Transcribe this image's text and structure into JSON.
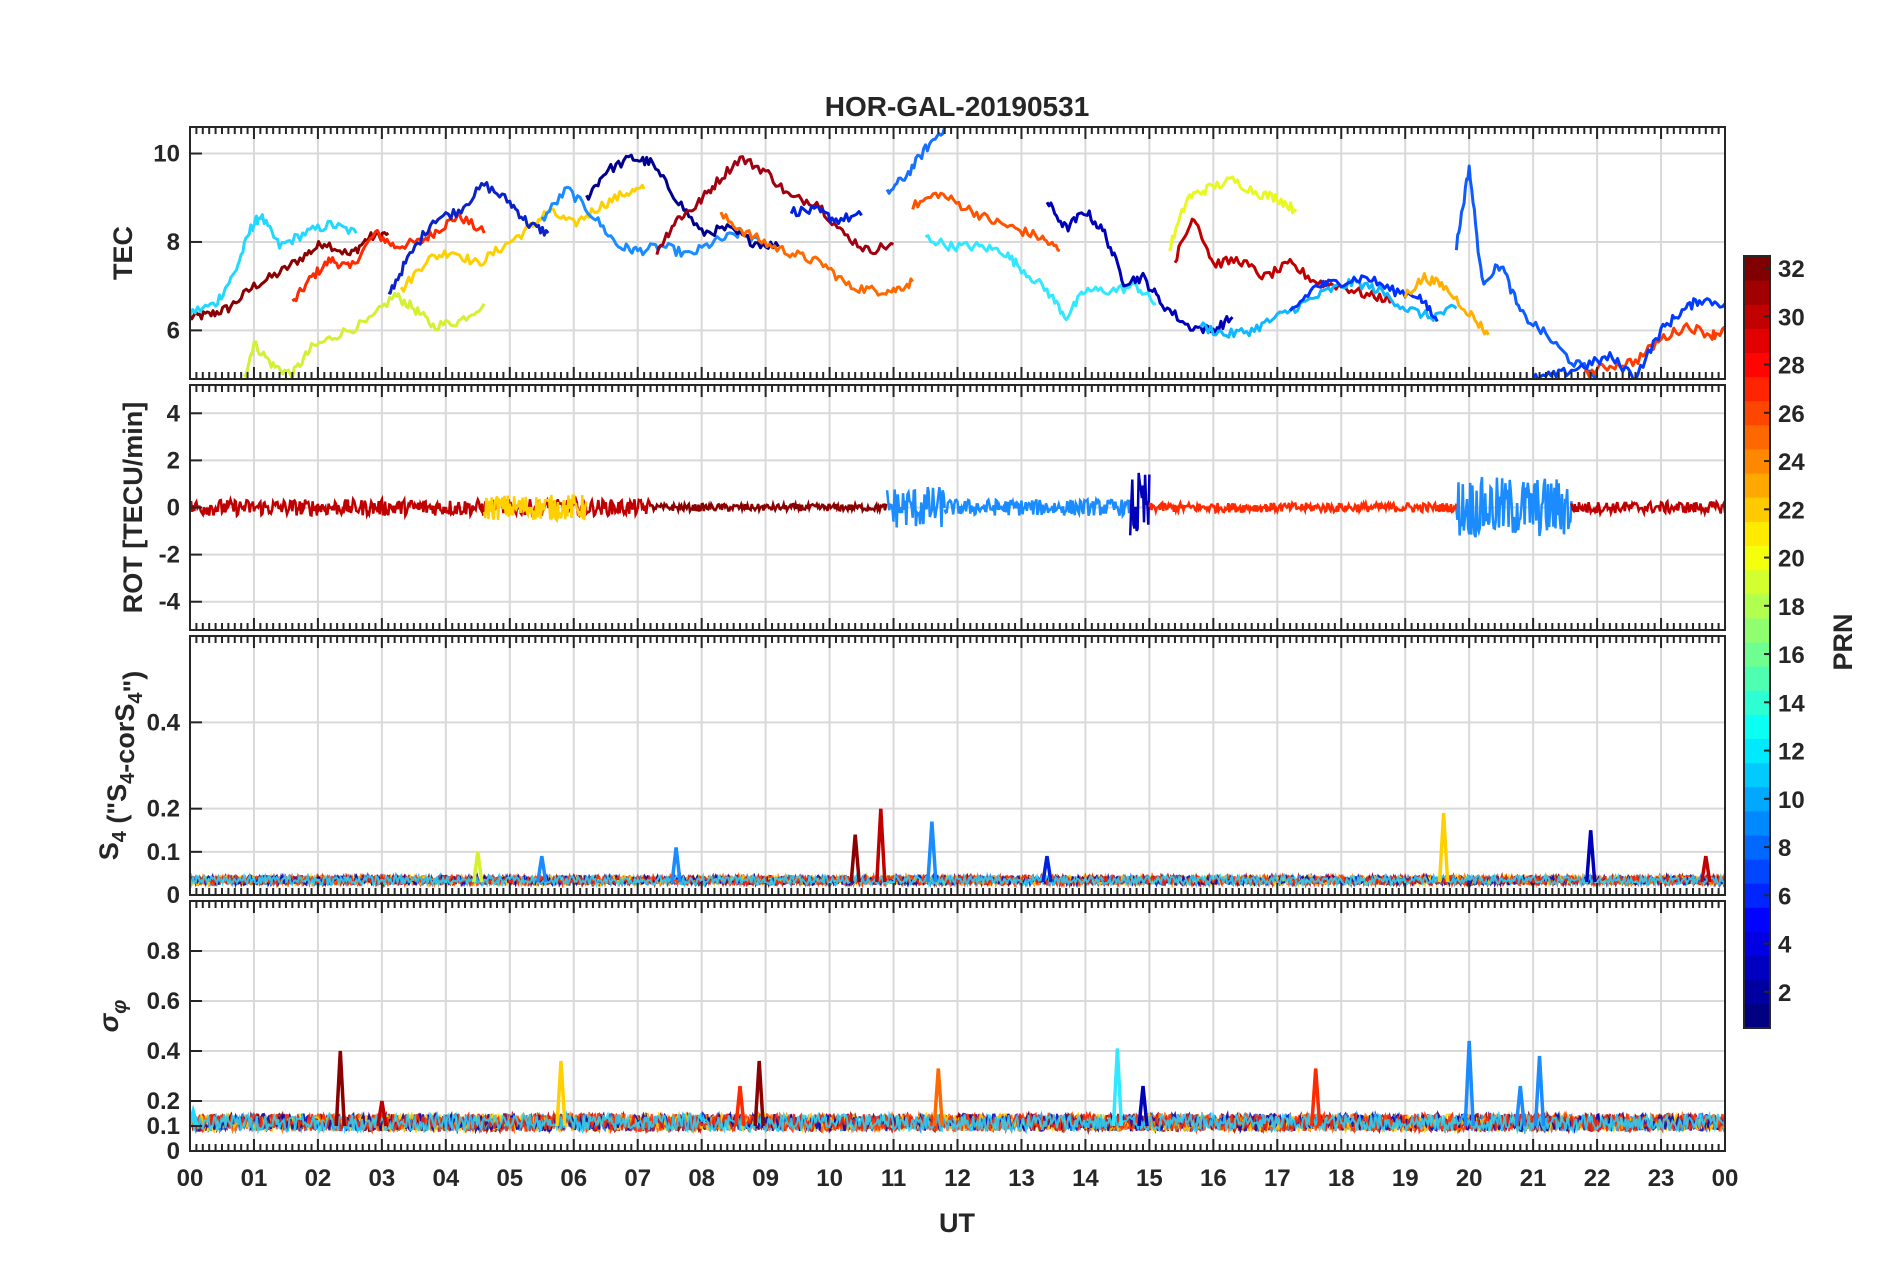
{
  "chart_data": {
    "type": "line",
    "title": "HOR-GAL-20190531",
    "xlabel": "UT",
    "x_ticks": [
      "00",
      "01",
      "02",
      "03",
      "04",
      "05",
      "06",
      "07",
      "08",
      "09",
      "10",
      "11",
      "12",
      "13",
      "14",
      "15",
      "16",
      "17",
      "18",
      "19",
      "20",
      "21",
      "22",
      "23",
      "00"
    ],
    "xlim": [
      0,
      24
    ],
    "colorbar": {
      "label": "PRN",
      "ticks": [
        "2",
        "4",
        "6",
        "8",
        "10",
        "12",
        "14",
        "16",
        "18",
        "20",
        "22",
        "24",
        "26",
        "28",
        "30",
        "32"
      ],
      "range": [
        1,
        32
      ],
      "colormap": "jet"
    },
    "panels": [
      {
        "id": "tec",
        "ylabel": "TEC",
        "ylim": [
          4.9,
          10.6
        ],
        "yticks": [
          "6",
          "8",
          "10"
        ],
        "ytick_values": [
          6,
          8,
          10
        ],
        "series": [
          {
            "prn": 32,
            "color": "#8b0000",
            "x": [
              0,
              0.3,
              0.6,
              1.0,
              1.4,
              1.8,
              2.1,
              2.5,
              2.8,
              3.1
            ],
            "y": [
              6.3,
              6.35,
              6.5,
              7.0,
              7.3,
              7.7,
              8.0,
              7.7,
              8.1,
              8.2
            ]
          },
          {
            "prn": 27,
            "color": "#ff2a00",
            "x": [
              1.6,
              1.9,
              2.2,
              2.5,
              2.9,
              3.2,
              3.6,
              3.9,
              4.2,
              4.6
            ],
            "y": [
              6.6,
              7.2,
              7.6,
              7.4,
              8.2,
              7.9,
              8.0,
              8.3,
              8.6,
              8.2
            ]
          },
          {
            "prn": 12,
            "color": "#22d8ff",
            "x": [
              0,
              0.4,
              0.7,
              0.95,
              1.1,
              1.4,
              1.8,
              2.2,
              2.6
            ],
            "y": [
              6.4,
              6.6,
              7.3,
              8.3,
              8.6,
              7.9,
              8.2,
              8.4,
              8.2
            ]
          },
          {
            "prn": 18,
            "color": "#d4f030",
            "x": [
              0.85,
              1.0,
              1.3,
              1.6,
              1.9,
              2.3,
              2.8,
              3.2,
              3.5,
              3.8,
              4.2,
              4.6
            ],
            "y": [
              4.95,
              5.7,
              5.2,
              5.0,
              5.6,
              5.9,
              6.2,
              6.8,
              6.5,
              6.1,
              6.2,
              6.6
            ]
          },
          {
            "prn": 21,
            "color": "#ffd000",
            "x": [
              3.3,
              3.7,
              4.1,
              4.5,
              4.9,
              5.3,
              5.6,
              6.0,
              6.4,
              6.8,
              7.1
            ],
            "y": [
              6.9,
              7.6,
              7.8,
              7.5,
              7.9,
              8.3,
              8.7,
              8.4,
              8.8,
              9.1,
              9.2
            ]
          },
          {
            "prn": 4,
            "color": "#0a22c8",
            "x": [
              3.1,
              3.4,
              3.8,
              4.2,
              4.6,
              5.0,
              5.3,
              5.6
            ],
            "y": [
              6.8,
              7.6,
              8.5,
              8.7,
              9.3,
              8.9,
              8.4,
              8.2
            ]
          },
          {
            "prn": 10,
            "color": "#1a8cff",
            "x": [
              5.5,
              5.9,
              6.3,
              6.7,
              7.0,
              7.4,
              7.8,
              8.2,
              8.6,
              9.0
            ],
            "y": [
              8.5,
              9.2,
              8.6,
              7.9,
              7.8,
              7.9,
              7.7,
              8.0,
              8.2,
              7.9
            ]
          },
          {
            "prn": 1,
            "color": "#00008f",
            "x": [
              6.2,
              6.5,
              6.9,
              7.2,
              7.6,
              8.0,
              8.4,
              8.8,
              9.2
            ],
            "y": [
              9.0,
              9.6,
              9.9,
              9.8,
              9.0,
              8.2,
              8.3,
              8.0,
              7.9
            ]
          },
          {
            "prn": 31,
            "color": "#a00010",
            "x": [
              7.3,
              7.6,
              7.9,
              8.2,
              8.6,
              9.0,
              9.4,
              9.8,
              10.2,
              10.6,
              11.0
            ],
            "y": [
              7.8,
              8.5,
              8.8,
              9.3,
              9.9,
              9.6,
              9.0,
              8.9,
              8.2,
              7.8,
              7.95
            ]
          },
          {
            "prn": 24,
            "color": "#ff6a00",
            "x": [
              8.3,
              8.7,
              9.1,
              9.5,
              9.9,
              10.3,
              10.7,
              11.0,
              11.3
            ],
            "y": [
              8.6,
              8.2,
              7.9,
              7.7,
              7.5,
              7.0,
              6.9,
              6.9,
              7.1
            ]
          },
          {
            "prn": 3,
            "color": "#0022e0",
            "x": [
              9.4,
              9.8,
              10.1,
              10.5
            ],
            "y": [
              8.7,
              8.7,
              8.5,
              8.6
            ]
          },
          {
            "prn": 9,
            "color": "#1870ff",
            "x": [
              10.9,
              11.2,
              11.5,
              11.8
            ],
            "y": [
              9.1,
              9.5,
              10.1,
              10.6
            ]
          },
          {
            "prn": 25,
            "color": "#ff5200",
            "x": [
              11.3,
              11.7,
              12.1,
              12.5,
              12.9,
              13.3,
              13.6
            ],
            "y": [
              8.8,
              9.1,
              8.8,
              8.5,
              8.3,
              8.1,
              7.8
            ]
          },
          {
            "prn": 13,
            "color": "#30e8ff",
            "x": [
              11.5,
              11.9,
              12.3,
              12.7,
              13.0,
              13.4,
              13.7,
              14.0,
              14.4,
              14.8,
              15.1
            ],
            "y": [
              8.1,
              7.9,
              7.9,
              7.8,
              7.4,
              6.9,
              6.3,
              6.9,
              6.9,
              7.0,
              6.6
            ]
          },
          {
            "prn": 2,
            "color": "#0000b8",
            "x": [
              13.4,
              13.7,
              14.0,
              14.3,
              14.6,
              14.9,
              15.2,
              15.6,
              16.0,
              16.3
            ],
            "y": [
              8.9,
              8.3,
              8.7,
              8.2,
              7.1,
              7.2,
              6.6,
              6.1,
              6.0,
              6.3
            ]
          },
          {
            "prn": 19,
            "color": "#e8f820",
            "x": [
              15.3,
              15.6,
              15.9,
              16.3,
              16.7,
              17.0,
              17.3
            ],
            "y": [
              7.8,
              9.0,
              9.2,
              9.4,
              9.1,
              9.0,
              8.7
            ]
          },
          {
            "prn": 30,
            "color": "#c00000",
            "x": [
              15.4,
              15.7,
              16.0,
              16.4,
              16.8,
              17.2,
              17.6,
              18.0,
              18.4,
              18.8
            ],
            "y": [
              7.6,
              8.6,
              7.5,
              7.6,
              7.2,
              7.5,
              7.1,
              7.0,
              6.8,
              6.7
            ]
          },
          {
            "prn": 11,
            "color": "#10b8ff",
            "x": [
              15.8,
              16.2,
              16.6,
              17.0,
              17.4,
              17.8,
              18.2,
              18.6,
              19.0,
              19.4,
              19.8
            ],
            "y": [
              6.1,
              5.9,
              6.0,
              6.3,
              6.6,
              6.9,
              7.1,
              6.9,
              6.5,
              6.3,
              6.5
            ]
          },
          {
            "prn": 5,
            "color": "#0030ff",
            "x": [
              17.2,
              17.6,
              18.0,
              18.4,
              18.8,
              19.2,
              19.5
            ],
            "y": [
              6.4,
              7.0,
              7.1,
              7.2,
              6.9,
              6.8,
              6.2
            ]
          },
          {
            "prn": 22,
            "color": "#ffb000",
            "x": [
              19.0,
              19.3,
              19.6,
              20.0,
              20.3
            ],
            "y": [
              6.8,
              7.2,
              7.0,
              6.4,
              5.9
            ]
          },
          {
            "prn": 8,
            "color": "#0e5cff",
            "x": [
              19.8,
              20.0,
              20.2,
              20.5,
              20.8,
              21.2,
              21.6,
              22.0
            ],
            "y": [
              7.9,
              9.7,
              7.1,
              7.5,
              6.4,
              5.9,
              5.3,
              5.0
            ]
          },
          {
            "prn": 26,
            "color": "#ff3c00",
            "x": [
              21.8,
              22.2,
              22.6,
              23.0,
              23.4,
              23.8,
              24.0
            ],
            "y": [
              5.0,
              5.2,
              5.3,
              5.8,
              6.1,
              5.9,
              6.0
            ]
          },
          {
            "prn": 6,
            "color": "#003cff",
            "x": [
              21.0,
              21.4,
              21.8,
              22.2,
              22.6,
              23.0,
              23.3,
              23.6,
              24.0
            ],
            "y": [
              4.9,
              5.0,
              5.2,
              5.4,
              4.95,
              6.0,
              6.4,
              6.7,
              6.6
            ]
          }
        ]
      },
      {
        "id": "rot",
        "ylabel": "ROT [TECU/min]",
        "ylim": [
          -5.2,
          5.2
        ],
        "yticks": [
          "-4",
          "-2",
          "0",
          "2",
          "4"
        ],
        "ytick_values": [
          -4,
          -2,
          0,
          2,
          4
        ],
        "activity": [
          {
            "t0": 0,
            "t1": 7.2,
            "amp": 0.35,
            "color": "#c00000"
          },
          {
            "t0": 4.6,
            "t1": 6.2,
            "amp": 0.55,
            "color": "#ffd000"
          },
          {
            "t0": 7.2,
            "t1": 10.9,
            "amp": 0.15,
            "color": "#8b0000"
          },
          {
            "t0": 10.9,
            "t1": 11.8,
            "amp": 0.9,
            "color": "#1a8cff"
          },
          {
            "t0": 11.8,
            "t1": 14.7,
            "amp": 0.35,
            "color": "#1a8cff"
          },
          {
            "t0": 14.7,
            "t1": 15.0,
            "amp": 1.5,
            "color": "#0000b8"
          },
          {
            "t0": 15.0,
            "t1": 19.8,
            "amp": 0.2,
            "color": "#ff2a00"
          },
          {
            "t0": 19.8,
            "t1": 21.6,
            "amp": 1.3,
            "color": "#1a8cff"
          },
          {
            "t0": 21.6,
            "t1": 24,
            "amp": 0.25,
            "color": "#c00000"
          }
        ]
      },
      {
        "id": "s4",
        "ylabel": "S4 (\"S4-corS4\")",
        "ylim": [
          0,
          0.6
        ],
        "yticks": [
          "0",
          "0.1",
          "0.2",
          "0.4"
        ],
        "ytick_values": [
          0,
          0.1,
          0.2,
          0.4
        ],
        "baseline": 0.03,
        "spikes": [
          {
            "x": 10.8,
            "y": 0.2,
            "color": "#c00000"
          },
          {
            "x": 10.4,
            "y": 0.14,
            "color": "#8b0000"
          },
          {
            "x": 11.6,
            "y": 0.17,
            "color": "#1a8cff"
          },
          {
            "x": 19.6,
            "y": 0.19,
            "color": "#ffd000"
          },
          {
            "x": 21.9,
            "y": 0.15,
            "color": "#0000b8"
          },
          {
            "x": 5.5,
            "y": 0.09,
            "color": "#1a8cff"
          },
          {
            "x": 7.6,
            "y": 0.11,
            "color": "#1a8cff"
          },
          {
            "x": 13.4,
            "y": 0.09,
            "color": "#0022e0"
          },
          {
            "x": 4.5,
            "y": 0.1,
            "color": "#d4f030"
          },
          {
            "x": 23.7,
            "y": 0.09,
            "color": "#c00000"
          }
        ]
      },
      {
        "id": "sigma",
        "ylabel": "σφ",
        "ylim": [
          0,
          1.0
        ],
        "yticks": [
          "0",
          "0.1",
          "0.2",
          "0.4",
          "0.6",
          "0.8"
        ],
        "ytick_values": [
          0,
          0.1,
          0.2,
          0.4,
          0.6,
          0.8
        ],
        "baseline": 0.1,
        "spikes": [
          {
            "x": 2.35,
            "y": 0.4,
            "color": "#8b0000"
          },
          {
            "x": 5.8,
            "y": 0.36,
            "color": "#ffd000"
          },
          {
            "x": 8.6,
            "y": 0.26,
            "color": "#ff2a00"
          },
          {
            "x": 8.9,
            "y": 0.36,
            "color": "#8b0000"
          },
          {
            "x": 11.7,
            "y": 0.33,
            "color": "#ff6a00"
          },
          {
            "x": 14.5,
            "y": 0.41,
            "color": "#30e8ff"
          },
          {
            "x": 14.9,
            "y": 0.26,
            "color": "#0000b8"
          },
          {
            "x": 17.6,
            "y": 0.33,
            "color": "#ff2a00"
          },
          {
            "x": 20.0,
            "y": 0.44,
            "color": "#1a8cff"
          },
          {
            "x": 21.1,
            "y": 0.38,
            "color": "#1a8cff"
          },
          {
            "x": 20.8,
            "y": 0.26,
            "color": "#1a8cff"
          },
          {
            "x": 3.0,
            "y": 0.2,
            "color": "#c00000"
          },
          {
            "x": 0.05,
            "y": 0.16,
            "color": "#22d8ff"
          }
        ]
      }
    ]
  }
}
